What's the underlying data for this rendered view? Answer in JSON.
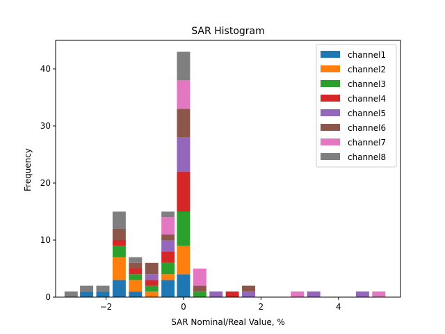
{
  "chart_data": {
    "type": "bar",
    "stacked": true,
    "title": "SAR Histogram",
    "xlabel": "SAR Nominal/Real Value, %",
    "ylabel": "Frequency",
    "xlim": [
      -3.3,
      5.6
    ],
    "ylim": [
      0,
      45
    ],
    "bar_width": 0.34,
    "xticks": [
      -2,
      0,
      2,
      4
    ],
    "xtick_labels": [
      "−2",
      "0",
      "2",
      "4"
    ],
    "yticks": [
      0,
      10,
      20,
      30,
      40
    ],
    "ytick_labels": [
      "0",
      "10",
      "20",
      "30",
      "40"
    ],
    "legend_position": "top-right",
    "x": [
      -2.9,
      -2.5,
      -2.08,
      -1.66,
      -1.24,
      -0.82,
      -0.4,
      0.0,
      0.42,
      0.84,
      1.26,
      1.68,
      2.94,
      3.36,
      4.62,
      5.04
    ],
    "series": [
      {
        "name": "channel1",
        "color": "#1f77b4",
        "values": [
          0,
          1,
          1,
          3,
          1,
          0,
          3,
          4,
          0,
          0,
          0,
          0,
          0,
          0,
          0,
          0
        ]
      },
      {
        "name": "channel2",
        "color": "#ff7f0e",
        "values": [
          0,
          0,
          0,
          4,
          2,
          1,
          1,
          5,
          0,
          0,
          0,
          0,
          0,
          0,
          0,
          0
        ]
      },
      {
        "name": "channel3",
        "color": "#2ca02c",
        "values": [
          0,
          0,
          0,
          2,
          1,
          1,
          2,
          6,
          1,
          0,
          0,
          0,
          0,
          0,
          0,
          0
        ]
      },
      {
        "name": "channel4",
        "color": "#d62728",
        "values": [
          0,
          0,
          0,
          1,
          1,
          1,
          2,
          7,
          0,
          0,
          1,
          0,
          0,
          0,
          0,
          0
        ]
      },
      {
        "name": "channel5",
        "color": "#9467bd",
        "values": [
          0,
          0,
          0,
          0,
          0,
          1,
          2,
          6,
          0,
          1,
          0,
          1,
          0,
          1,
          1,
          0
        ]
      },
      {
        "name": "channel6",
        "color": "#8c564b",
        "values": [
          0,
          0,
          0,
          2,
          1,
          2,
          1,
          5,
          1,
          0,
          0,
          1,
          0,
          0,
          0,
          0
        ]
      },
      {
        "name": "channel7",
        "color": "#e377c2",
        "values": [
          0,
          0,
          0,
          0,
          0,
          0,
          3,
          5,
          3,
          0,
          0,
          0,
          1,
          0,
          0,
          1
        ]
      },
      {
        "name": "channel8",
        "color": "#7f7f7f",
        "values": [
          1,
          1,
          1,
          3,
          1,
          0,
          1,
          5,
          0,
          0,
          0,
          0,
          0,
          0,
          0,
          0
        ]
      }
    ]
  }
}
